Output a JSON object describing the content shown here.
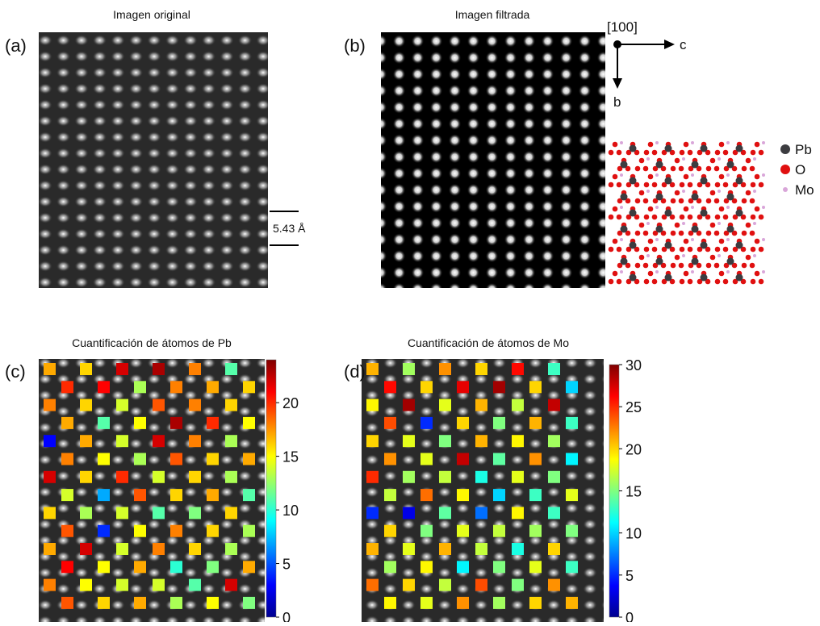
{
  "panels": [
    {
      "label": "(a)",
      "title": "Imagen original",
      "scale_bar": "5.43 Å"
    },
    {
      "label": "(b)",
      "title": "Imagen filtrada",
      "axes": {
        "zone": "[100]",
        "right": "c",
        "down": "b"
      },
      "legend": [
        {
          "name": "Pb",
          "color": "#3c3c40"
        },
        {
          "name": "O",
          "color": "#e01010"
        },
        {
          "name": "Mo",
          "color": "#d9a6d9"
        }
      ]
    },
    {
      "label": "(c)",
      "title": "Cuantificación de átomos de Pb",
      "clim": [
        0,
        24
      ],
      "ticks": [
        0,
        5,
        10,
        15,
        20
      ],
      "values": [
        [
          17,
          16,
          22,
          23,
          18,
          11
        ],
        [
          20,
          21,
          13,
          18,
          17,
          16
        ],
        [
          18,
          16,
          14,
          19,
          18,
          16
        ],
        [
          17,
          11,
          15,
          23,
          20,
          15
        ],
        [
          3,
          17,
          14,
          22,
          18,
          13
        ],
        [
          18,
          15,
          13,
          19,
          16,
          17
        ],
        [
          22,
          16,
          20,
          14,
          16,
          13
        ],
        [
          14,
          7,
          19,
          16,
          17,
          11
        ],
        [
          16,
          13,
          14,
          11,
          12,
          16
        ],
        [
          19,
          4,
          15,
          18,
          16,
          13
        ],
        [
          17,
          22,
          14,
          18,
          16,
          13
        ],
        [
          21,
          15,
          17,
          10,
          12,
          17
        ],
        [
          18,
          15,
          14,
          14,
          11,
          22
        ],
        [
          19,
          16,
          17,
          13,
          15,
          12
        ]
      ]
    },
    {
      "label": "(d)",
      "title": "Cuantificación de átomos de Mo",
      "clim": [
        0,
        30
      ],
      "ticks": [
        0,
        5,
        10,
        15,
        20,
        25,
        30
      ],
      "values": [
        [
          21,
          16,
          22,
          20,
          26,
          13
        ],
        [
          26,
          20,
          27,
          29,
          20,
          10
        ],
        [
          19,
          29,
          18,
          21,
          17,
          28
        ],
        [
          24,
          5,
          20,
          15,
          21,
          13
        ],
        [
          20,
          18,
          15,
          21,
          19,
          16
        ],
        [
          22,
          18,
          28,
          14,
          22,
          11
        ],
        [
          25,
          16,
          17,
          12,
          18,
          15
        ],
        [
          17,
          23,
          19,
          10,
          13,
          18
        ],
        [
          5,
          3,
          14,
          7,
          19,
          13
        ],
        [
          20,
          15,
          18,
          17,
          16,
          15
        ],
        [
          21,
          18,
          21,
          17,
          12,
          20
        ],
        [
          16,
          19,
          11,
          15,
          18,
          13
        ],
        [
          23,
          20,
          17,
          24,
          15,
          22
        ],
        [
          19,
          18,
          22,
          16,
          20,
          21
        ]
      ]
    }
  ]
}
